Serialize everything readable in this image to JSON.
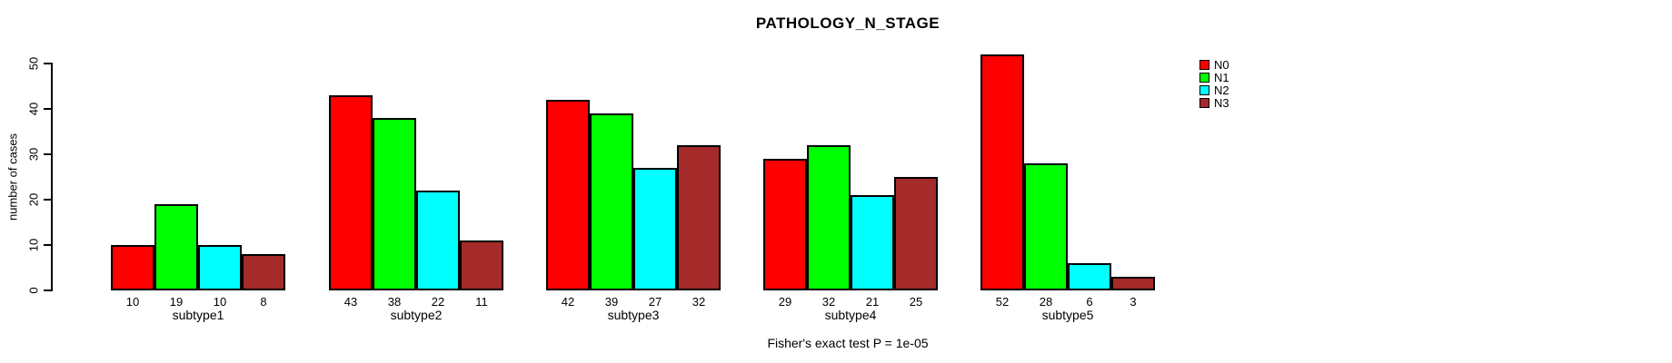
{
  "title": "PATHOLOGY_N_STAGE",
  "ylabel": "number of cases",
  "footnote": "Fisher's exact test P = 1e-05",
  "chart_data": {
    "type": "bar",
    "title": "PATHOLOGY_N_STAGE",
    "ylabel": "number of cases",
    "xlabel": "",
    "annotation": "Fisher's exact test P = 1e-05",
    "categories": [
      "subtype1",
      "subtype2",
      "subtype3",
      "subtype4",
      "subtype5"
    ],
    "series": [
      {
        "name": "N0",
        "color": "#FF0000",
        "values": [
          10,
          43,
          42,
          29,
          52
        ]
      },
      {
        "name": "N1",
        "color": "#00FF00",
        "values": [
          19,
          38,
          39,
          32,
          28
        ]
      },
      {
        "name": "N2",
        "color": "#00FFFF",
        "values": [
          10,
          22,
          27,
          21,
          6
        ]
      },
      {
        "name": "N3",
        "color": "#A52A2A",
        "values": [
          8,
          11,
          32,
          25,
          3
        ]
      }
    ],
    "ylim": [
      0,
      50
    ],
    "yticks": [
      0,
      10,
      20,
      30,
      40,
      50
    ],
    "grid": false,
    "legend_position": "top-right",
    "bar_value_labels": true
  }
}
